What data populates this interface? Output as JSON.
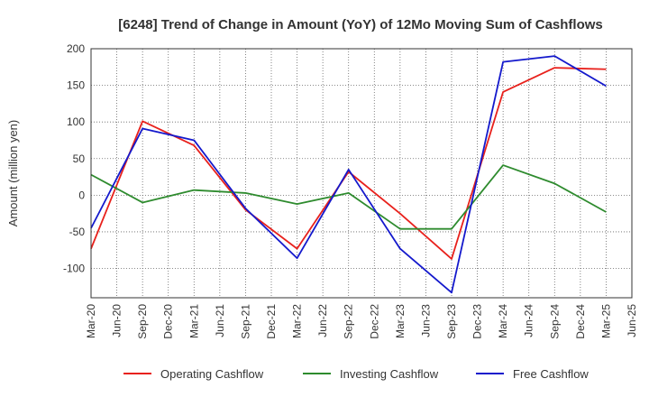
{
  "chart_data": {
    "type": "line",
    "title": "[6248]  Trend of Change in Amount (YoY) of 12Mo Moving Sum of Cashflows",
    "ylabel": "Amount (million yen)",
    "xlabel": "",
    "ylim": [
      -140,
      200
    ],
    "yticks": [
      200,
      150,
      100,
      50,
      0,
      -50,
      -100
    ],
    "categories": [
      "Mar-20",
      "Jun-20",
      "Sep-20",
      "Dec-20",
      "Mar-21",
      "Jun-21",
      "Sep-21",
      "Dec-21",
      "Mar-22",
      "Jun-22",
      "Sep-22",
      "Dec-22",
      "Mar-23",
      "Jun-23",
      "Sep-23",
      "Dec-23",
      "Mar-24",
      "Jun-24",
      "Sep-24",
      "Dec-24",
      "Mar-25",
      "Jun-25"
    ],
    "grid": true,
    "legend_position": "bottom",
    "series": [
      {
        "name": "Operating Cashflow",
        "color": "#e8211c",
        "values": [
          -73,
          null,
          101,
          null,
          68,
          null,
          -20,
          null,
          -73,
          null,
          32,
          null,
          -25,
          null,
          -87,
          null,
          141,
          null,
          174,
          null,
          172,
          null
        ]
      },
      {
        "name": "Investing Cashflow",
        "color": "#2e8b2e",
        "values": [
          28,
          null,
          -10,
          null,
          7,
          null,
          3,
          null,
          -12,
          null,
          3,
          null,
          -46,
          null,
          -46,
          null,
          41,
          null,
          16,
          null,
          -23,
          null
        ]
      },
      {
        "name": "Free Cashflow",
        "color": "#1419cc",
        "values": [
          -45,
          null,
          91,
          null,
          75,
          null,
          -18,
          null,
          -86,
          null,
          35,
          null,
          -73,
          null,
          -133,
          null,
          182,
          null,
          190,
          null,
          149,
          null
        ]
      }
    ]
  }
}
